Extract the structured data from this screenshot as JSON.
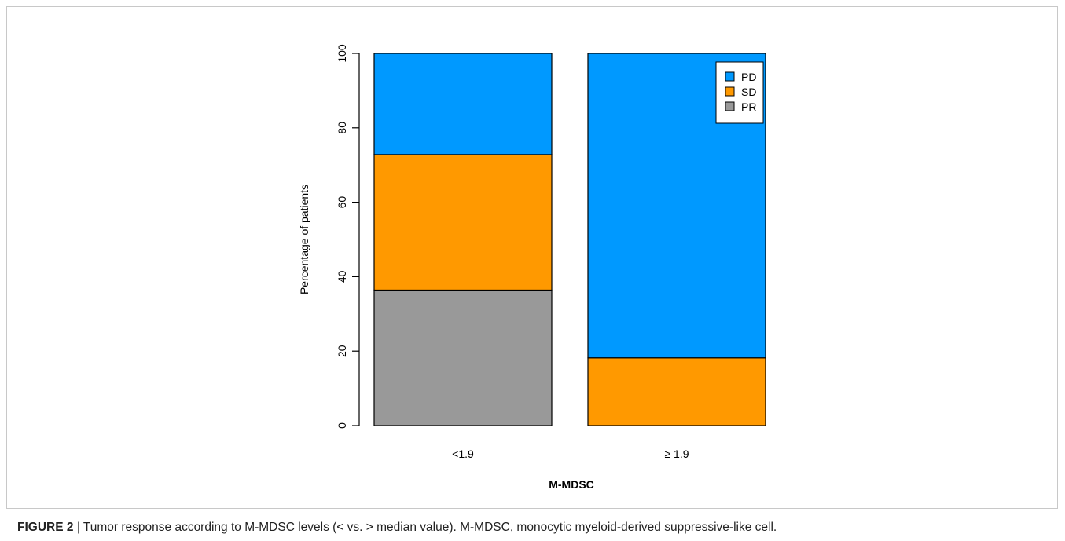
{
  "chart_data": {
    "type": "bar",
    "stacked": true,
    "categories": [
      "<1.9",
      "≥ 1.9"
    ],
    "series": [
      {
        "name": "PR",
        "values": [
          36.4,
          0
        ],
        "color": "#999999"
      },
      {
        "name": "SD",
        "values": [
          36.4,
          18.2
        ],
        "color": "#FF9900"
      },
      {
        "name": "PD",
        "values": [
          27.2,
          81.8
        ],
        "color": "#0099FF"
      }
    ],
    "xlabel": "M-MDSC",
    "ylabel": "Percentage of patients",
    "ylim": [
      0,
      100
    ],
    "yticks": [
      0,
      20,
      40,
      60,
      80,
      100
    ],
    "legend": {
      "placement": "top-right",
      "order": [
        "PD",
        "SD",
        "PR"
      ]
    },
    "grid": false
  },
  "caption": {
    "figure_label": "FIGURE 2",
    "separator": "|",
    "text": "Tumor response according to M-MDSC levels (< vs. > median value). M-MDSC, monocytic myeloid-derived suppressive-like cell."
  }
}
